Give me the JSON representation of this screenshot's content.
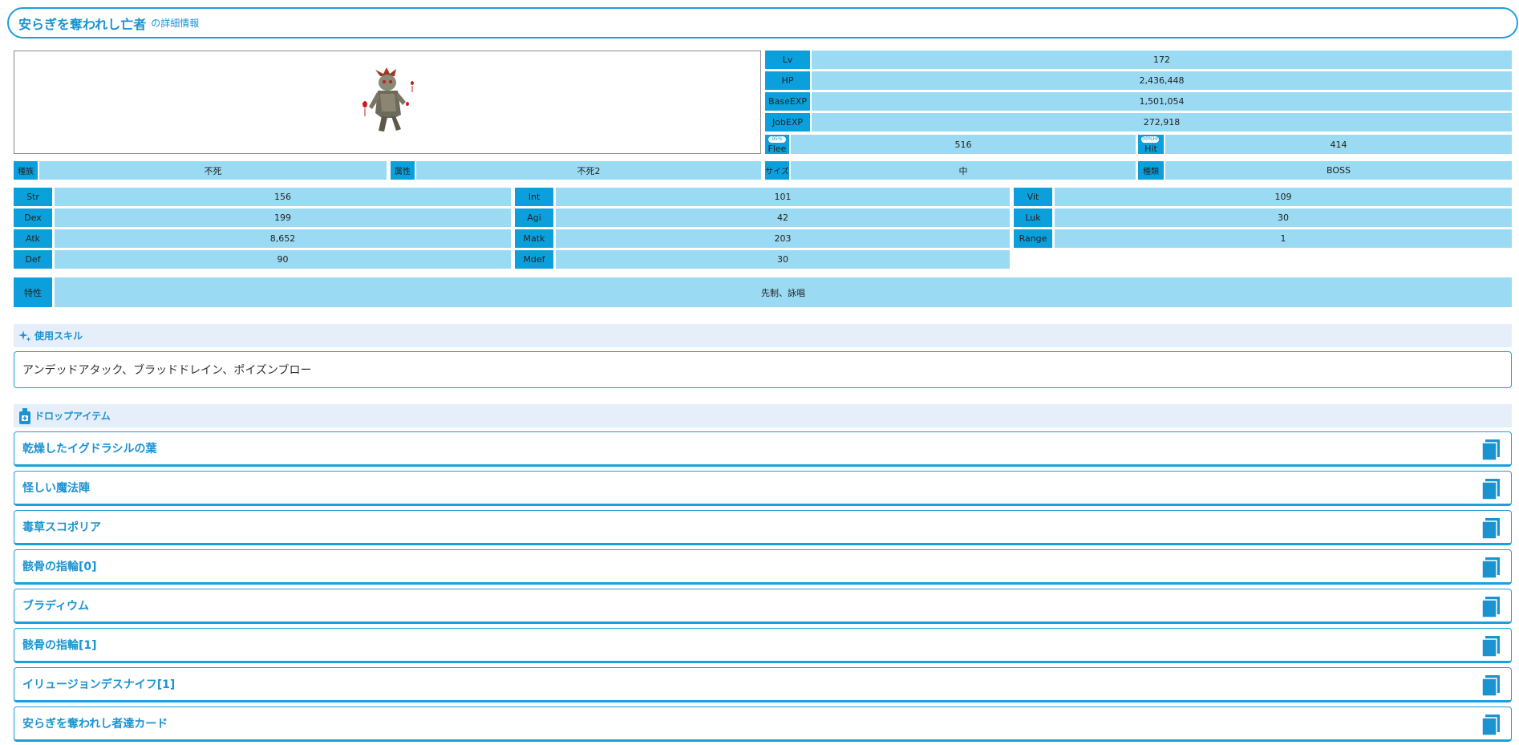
{
  "header": {
    "monster_name": "安らぎを奪われし亡者",
    "suffix": "の詳細情報"
  },
  "stats_right": {
    "lv": {
      "label": "Lv",
      "value": "172"
    },
    "hp": {
      "label": "HP",
      "value": "2,436,448"
    },
    "base_exp": {
      "label": "BaseEXP",
      "value": "1,501,054"
    },
    "job_exp": {
      "label": "JobEXP",
      "value": "272,918"
    },
    "flee": {
      "label": "Flee",
      "tag": "95%",
      "value": "516"
    },
    "hit": {
      "label": "Hit",
      "tag": "100%HIT",
      "value": "414"
    }
  },
  "attributes": {
    "race": {
      "label": "種族",
      "value": "不死"
    },
    "element": {
      "label": "属性",
      "value": "不死2"
    },
    "size": {
      "label": "サイズ",
      "value": "中"
    },
    "type": {
      "label": "種類",
      "value": "BOSS"
    }
  },
  "stats_grid": {
    "str": {
      "label": "Str",
      "value": "156"
    },
    "int": {
      "label": "Int",
      "value": "101"
    },
    "vit": {
      "label": "Vit",
      "value": "109"
    },
    "dex": {
      "label": "Dex",
      "value": "199"
    },
    "agi": {
      "label": "Agi",
      "value": "42"
    },
    "luk": {
      "label": "Luk",
      "value": "30"
    },
    "atk": {
      "label": "Atk",
      "value": "8,652"
    },
    "matk": {
      "label": "Matk",
      "value": "203"
    },
    "range": {
      "label": "Range",
      "value": "1"
    },
    "def": {
      "label": "Def",
      "value": "90"
    },
    "mdef": {
      "label": "Mdef",
      "value": "30"
    }
  },
  "trait": {
    "label": "特性",
    "value": "先制、詠唱"
  },
  "skills": {
    "heading": "使用スキル",
    "list": "アンデッドアタック、ブラッドドレイン、ポイズンブロー"
  },
  "drops": {
    "heading": "ドロップアイテム",
    "items": [
      "乾燥したイグドラシルの葉",
      "怪しい魔法陣",
      "毒草スコポリア",
      "骸骨の指輪[0]",
      "ブラディウム",
      "骸骨の指輪[1]",
      "イリュージョンデスナイフ[1]",
      "安らぎを奪われし者達カード"
    ]
  },
  "icons": {
    "skill": "sparkle-icon",
    "drop": "potion-icon",
    "book": "book-icon"
  },
  "colors": {
    "accent": "#1ba0dd",
    "label_bg": "#0ba0dc",
    "value_bg": "#9bdaf3",
    "section_bg": "#e6eef9"
  }
}
